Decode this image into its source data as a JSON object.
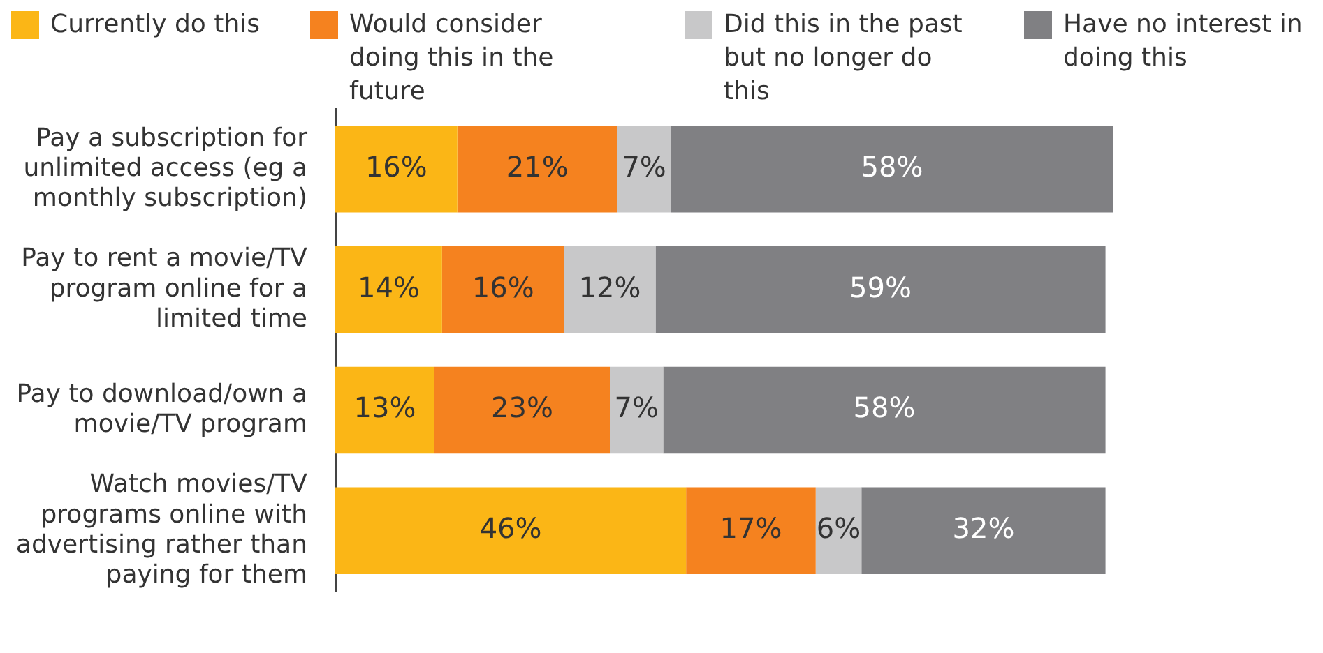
{
  "chart_data": {
    "type": "bar",
    "orientation": "horizontal",
    "stacked": true,
    "legend": "top",
    "tick_labels": "y",
    "categories": [
      "Pay a subscription for unlimited access (eg a monthly subscription)",
      "Pay to rent a movie/TV program online for a limited time",
      "Pay to download/own a movie/TV program",
      "Watch movies/TV programs online with advertising rather than paying for them"
    ],
    "series": [
      {
        "name": "Currently do this",
        "color": "#fbb616",
        "values": [
          16,
          14,
          13,
          46
        ],
        "value_labels": [
          "16%",
          "14%",
          "13%",
          "46%"
        ]
      },
      {
        "name": "Would consider doing this in the future",
        "color": "#f5821f",
        "values": [
          21,
          16,
          23,
          17
        ],
        "value_labels": [
          "21%",
          "16%",
          "23%",
          "17%"
        ]
      },
      {
        "name": "Did this in the past but no longer do this",
        "color": "#c8c8c9",
        "values": [
          7,
          12,
          7,
          6
        ],
        "value_labels": [
          "7%",
          "12%",
          "7%",
          "6%"
        ]
      },
      {
        "name": "Have no interest in doing this",
        "color": "#808083",
        "values": [
          58,
          59,
          58,
          32
        ],
        "value_labels": [
          "58%",
          "59%",
          "58%",
          "32%"
        ]
      }
    ]
  }
}
